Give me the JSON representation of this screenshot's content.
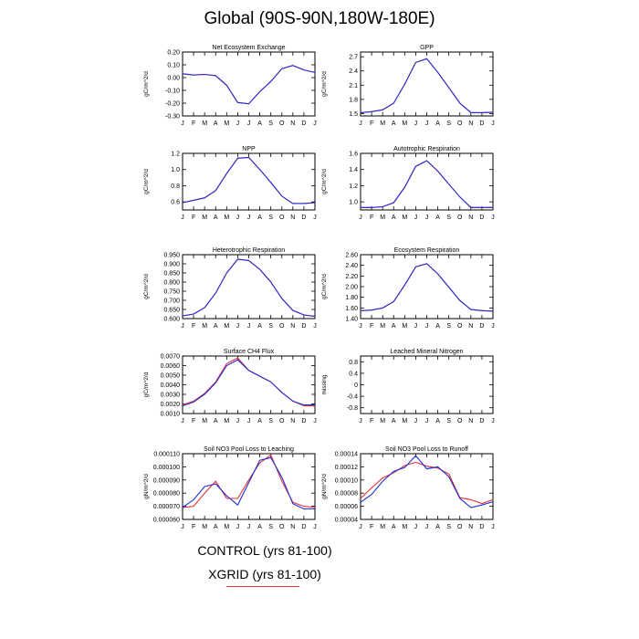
{
  "title": "Global (90S-90N,180W-180E)",
  "legend": {
    "control": "CONTROL (yrs 81-100)",
    "xgrid": "XGRID (yrs 81-100)",
    "control_color": "#1f2fd6",
    "xgrid_color": "#e0303a"
  },
  "chart_data": [
    {
      "type": "line",
      "title": "Net Ecosystem Exchange",
      "ylabel": "gC/m^2/d",
      "categories": [
        "J",
        "F",
        "M",
        "A",
        "M",
        "J",
        "J",
        "A",
        "S",
        "O",
        "N",
        "D",
        "J"
      ],
      "ylim": [
        -0.3,
        0.2
      ],
      "yticks": [
        "0.20",
        "0.10",
        "0.00",
        "-0.10",
        "-0.20",
        "-0.30"
      ],
      "ytick_values": [
        0.2,
        0.1,
        0.0,
        -0.1,
        -0.2,
        -0.3
      ],
      "series": [
        {
          "values": [
            0.03,
            0.02,
            0.025,
            0.015,
            -0.06,
            -0.195,
            -0.205,
            -0.11,
            -0.03,
            0.07,
            0.095,
            0.06,
            0.04
          ]
        },
        {
          "values": [
            0.03,
            0.02,
            0.025,
            0.015,
            -0.06,
            -0.195,
            -0.205,
            -0.11,
            -0.03,
            0.07,
            0.095,
            0.06,
            0.04
          ]
        }
      ]
    },
    {
      "type": "line",
      "title": "GPP",
      "ylabel": "gC/m^2/d",
      "categories": [
        "J",
        "F",
        "M",
        "A",
        "M",
        "J",
        "J",
        "A",
        "S",
        "O",
        "N",
        "D",
        "J"
      ],
      "ylim": [
        1.45,
        2.8
      ],
      "yticks": [
        "2.7",
        "2.4",
        "2.1",
        "1.8",
        "1.5"
      ],
      "ytick_values": [
        2.7,
        2.4,
        2.1,
        1.8,
        1.5
      ],
      "series": [
        {
          "values": [
            1.52,
            1.54,
            1.58,
            1.72,
            2.12,
            2.58,
            2.66,
            2.37,
            2.05,
            1.72,
            1.52,
            1.52,
            1.53
          ]
        },
        {
          "values": [
            1.52,
            1.54,
            1.58,
            1.72,
            2.12,
            2.58,
            2.66,
            2.37,
            2.05,
            1.72,
            1.52,
            1.52,
            1.53
          ]
        }
      ]
    },
    {
      "type": "line",
      "title": "NPP",
      "ylabel": "gC/m^2/d",
      "categories": [
        "J",
        "F",
        "M",
        "A",
        "M",
        "J",
        "J",
        "A",
        "S",
        "O",
        "N",
        "D",
        "J"
      ],
      "ylim": [
        0.5,
        1.2
      ],
      "yticks": [
        "1.2",
        "1.0",
        "0.8",
        "0.6"
      ],
      "ytick_values": [
        1.2,
        1.0,
        0.8,
        0.6
      ],
      "series": [
        {
          "values": [
            0.59,
            0.62,
            0.65,
            0.74,
            0.95,
            1.14,
            1.15,
            1.0,
            0.84,
            0.67,
            0.58,
            0.58,
            0.59
          ]
        },
        {
          "values": [
            0.59,
            0.62,
            0.65,
            0.74,
            0.95,
            1.14,
            1.15,
            1.0,
            0.84,
            0.67,
            0.58,
            0.58,
            0.59
          ]
        }
      ]
    },
    {
      "type": "line",
      "title": "Autotrophic Respiration",
      "ylabel": "gC/m^2/d",
      "categories": [
        "J",
        "F",
        "M",
        "A",
        "M",
        "J",
        "J",
        "A",
        "S",
        "O",
        "N",
        "D",
        "J"
      ],
      "ylim": [
        0.9,
        1.6
      ],
      "yticks": [
        "1.6",
        "1.4",
        "1.2",
        "1.0"
      ],
      "ytick_values": [
        1.6,
        1.4,
        1.2,
        1.0
      ],
      "series": [
        {
          "values": [
            0.93,
            0.93,
            0.94,
            0.99,
            1.18,
            1.44,
            1.51,
            1.38,
            1.22,
            1.06,
            0.93,
            0.93,
            0.93
          ]
        },
        {
          "values": [
            0.93,
            0.93,
            0.94,
            0.99,
            1.18,
            1.44,
            1.51,
            1.38,
            1.22,
            1.06,
            0.93,
            0.93,
            0.93
          ]
        }
      ]
    },
    {
      "type": "line",
      "title": "Heterotrophic Respiration",
      "ylabel": "gC/m^2/d",
      "categories": [
        "J",
        "F",
        "M",
        "A",
        "M",
        "J",
        "J",
        "A",
        "S",
        "O",
        "N",
        "D",
        "J"
      ],
      "ylim": [
        0.6,
        0.95
      ],
      "yticks": [
        "0.950",
        "0.900",
        "0.850",
        "0.800",
        "0.750",
        "0.700",
        "0.650",
        "0.600"
      ],
      "ytick_values": [
        0.95,
        0.9,
        0.85,
        0.8,
        0.75,
        0.7,
        0.65,
        0.6
      ],
      "series": [
        {
          "values": [
            0.615,
            0.625,
            0.66,
            0.74,
            0.85,
            0.925,
            0.918,
            0.87,
            0.8,
            0.71,
            0.645,
            0.62,
            0.612
          ]
        },
        {
          "values": [
            0.615,
            0.625,
            0.66,
            0.74,
            0.85,
            0.925,
            0.918,
            0.87,
            0.8,
            0.71,
            0.645,
            0.62,
            0.612
          ]
        }
      ]
    },
    {
      "type": "line",
      "title": "Ecosystem Respiration",
      "ylabel": "gC/m^2/d",
      "categories": [
        "J",
        "F",
        "M",
        "A",
        "M",
        "J",
        "J",
        "A",
        "S",
        "O",
        "N",
        "D",
        "J"
      ],
      "ylim": [
        1.4,
        2.6
      ],
      "yticks": [
        "2.60",
        "2.40",
        "2.20",
        "2.00",
        "1.80",
        "1.60",
        "1.40"
      ],
      "ytick_values": [
        2.6,
        2.4,
        2.2,
        2.0,
        1.8,
        1.6,
        1.4
      ],
      "series": [
        {
          "values": [
            1.55,
            1.56,
            1.6,
            1.72,
            2.03,
            2.37,
            2.43,
            2.24,
            1.99,
            1.74,
            1.57,
            1.55,
            1.54
          ]
        },
        {
          "values": [
            1.55,
            1.56,
            1.6,
            1.72,
            2.03,
            2.37,
            2.43,
            2.24,
            1.99,
            1.74,
            1.57,
            1.55,
            1.54
          ]
        }
      ]
    },
    {
      "type": "line",
      "title": "Surface CH4 Flux",
      "ylabel": "gC/m^2/d",
      "categories": [
        "J",
        "F",
        "M",
        "A",
        "M",
        "J",
        "J",
        "A",
        "S",
        "O",
        "N",
        "D",
        "J"
      ],
      "ylim": [
        0.001,
        0.007
      ],
      "yticks": [
        "0.0070",
        "0.0060",
        "0.0050",
        "0.0040",
        "0.0030",
        "0.0020",
        "0.0010"
      ],
      "ytick_values": [
        0.007,
        0.006,
        0.005,
        0.004,
        0.003,
        0.002,
        0.001
      ],
      "series": [
        {
          "values": [
            0.0018,
            0.0022,
            0.003,
            0.0042,
            0.006,
            0.0066,
            0.0055,
            0.0049,
            0.0043,
            0.0032,
            0.0023,
            0.0019,
            0.0019
          ]
        },
        {
          "values": [
            0.0019,
            0.0023,
            0.0031,
            0.0043,
            0.0062,
            0.0068,
            0.0055,
            0.0049,
            0.0043,
            0.0032,
            0.0023,
            0.0018,
            0.0018
          ]
        }
      ]
    },
    {
      "type": "line",
      "title": "Leached Mineral Nitrogen",
      "ylabel": "missing",
      "categories": [
        "J",
        "F",
        "M",
        "A",
        "M",
        "J",
        "J",
        "A",
        "S",
        "O",
        "N",
        "D",
        "J"
      ],
      "ylim": [
        -1.0,
        1.0
      ],
      "yticks": [
        "0.8",
        "0.4",
        "0",
        "-0.4",
        "-0.8"
      ],
      "ytick_values": [
        0.8,
        0.4,
        0,
        -0.4,
        -0.8
      ],
      "series": []
    },
    {
      "type": "line",
      "title": "Soil NO3 Pool Loss to Leaching",
      "ylabel": "gN/m^2/d",
      "categories": [
        "J",
        "F",
        "M",
        "A",
        "M",
        "J",
        "J",
        "A",
        "S",
        "O",
        "N",
        "D",
        "J"
      ],
      "ylim": [
        6e-05,
        0.00011
      ],
      "yticks": [
        "0.000110",
        "0.000100",
        "0.000090",
        "0.000080",
        "0.000070",
        "0.000060"
      ],
      "ytick_values": [
        0.00011,
        0.0001,
        9e-05,
        8e-05,
        7e-05,
        6e-05
      ],
      "series": [
        {
          "values": [
            6.9e-05,
            7.5e-05,
            8.5e-05,
            8.7e-05,
            7.8e-05,
            7.1e-05,
            8.8e-05,
            0.000105,
            0.000107,
            9.2e-05,
            7.2e-05,
            6.8e-05,
            6.8e-05
          ]
        },
        {
          "values": [
            6.9e-05,
            7e-05,
            8e-05,
            8.9e-05,
            7.6e-05,
            7.6e-05,
            9e-05,
            0.000103,
            0.000109,
            8.9e-05,
            7.3e-05,
            7e-05,
            6.9e-05
          ]
        }
      ]
    },
    {
      "type": "line",
      "title": "Soil NO3 Pool Loss to Runoff",
      "ylabel": "gN/m^2/d",
      "categories": [
        "J",
        "F",
        "M",
        "A",
        "M",
        "J",
        "J",
        "A",
        "S",
        "O",
        "N",
        "D",
        "J"
      ],
      "ylim": [
        4e-05,
        0.00014
      ],
      "yticks": [
        "0.00014",
        "0.00012",
        "0.00010",
        "0.00008",
        "0.00006",
        "0.00004"
      ],
      "ytick_values": [
        0.00014,
        0.00012,
        0.0001,
        8e-05,
        6e-05,
        4e-05
      ],
      "series": [
        {
          "values": [
            6.6e-05,
            7.8e-05,
            9.8e-05,
            0.000113,
            0.000119,
            0.000137,
            0.000117,
            0.00012,
            0.000105,
            7.2e-05,
            5.8e-05,
            6.2e-05,
            6.7e-05
          ]
        },
        {
          "values": [
            7.2e-05,
            8.8e-05,
            0.000103,
            0.000111,
            0.000122,
            0.000127,
            0.000121,
            0.000118,
            0.000109,
            7.3e-05,
            7e-05,
            6.4e-05,
            7e-05
          ]
        }
      ]
    }
  ]
}
